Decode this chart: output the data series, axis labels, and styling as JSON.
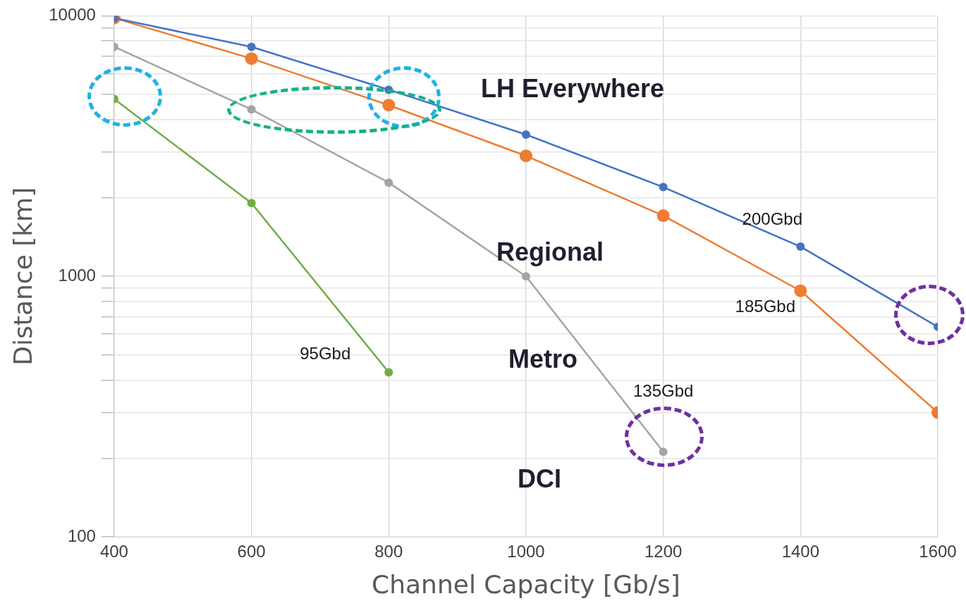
{
  "chart_data": {
    "type": "line",
    "xlabel": "Channel Capacity [Gb/s]",
    "ylabel": "Distance [km]",
    "log": "y",
    "grid": true,
    "marker": "circle",
    "line_style": "solid",
    "legend": false,
    "xlim": [
      400,
      1600
    ],
    "xticks": [
      400,
      600,
      800,
      1000,
      1200,
      1400,
      1600
    ],
    "ylim": [
      100,
      10000
    ],
    "yticks": [
      100,
      {
        "value": 200,
        "label": null
      },
      {
        "value": 300,
        "label": null
      },
      {
        "value": 400,
        "label": null
      },
      {
        "value": 500,
        "label": null
      },
      {
        "value": 600,
        "label": null
      },
      {
        "value": 700,
        "label": null
      },
      {
        "value": 800,
        "label": null
      },
      {
        "value": 900,
        "label": null
      },
      1000,
      {
        "value": 2000,
        "label": null
      },
      {
        "value": 3000,
        "label": null
      },
      {
        "value": 4000,
        "label": null
      },
      {
        "value": 5000,
        "label": null
      },
      {
        "value": 6000,
        "label": null
      },
      {
        "value": 7000,
        "label": null
      },
      {
        "value": 8000,
        "label": null
      },
      {
        "value": 9000,
        "label": null
      },
      10000
    ],
    "series": [
      {
        "name": "200Gbd",
        "color": "#4472c4",
        "x": [
          400,
          600,
          800,
          1000,
          1200,
          1400,
          1600
        ],
        "values": [
          9800,
          7600,
          5200,
          3500,
          2200,
          1300,
          640
        ]
      },
      {
        "name": "185Gbd",
        "color": "#ed7d31",
        "x": [
          400,
          600,
          800,
          1000,
          1200,
          1400,
          1600
        ],
        "values": [
          9800,
          6850,
          4540,
          2900,
          1710,
          880,
          300
        ]
      },
      {
        "name": "135Gbd",
        "color": "#a5a5a5",
        "x": [
          400,
          600,
          800,
          1000,
          1200
        ],
        "values": [
          7600,
          4370,
          2290,
          1000,
          212
        ]
      },
      {
        "name": "95Gbd",
        "color": "#70ad47",
        "x": [
          400,
          600,
          800
        ],
        "values": [
          4790,
          1910,
          428
        ]
      }
    ],
    "annotations": [
      "LH Everywhere",
      "Regional",
      "Metro",
      "DCI"
    ]
  }
}
